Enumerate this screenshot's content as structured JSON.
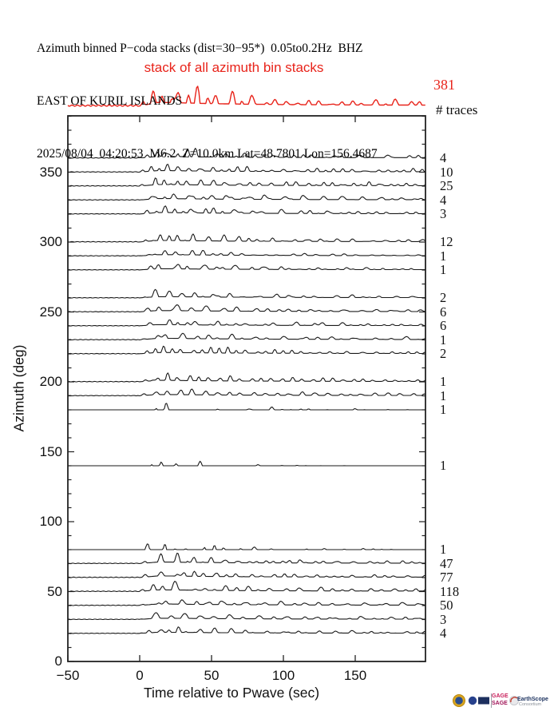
{
  "header": {
    "line1": "Azimuth binned P−coda stacks (dist=30−95*)  0.05to0.2Hz  BHZ",
    "line2": "EAST OF KURIL ISLANDS",
    "line3": "2025/08/04  04:20:53  M6.2  Z=10.0km Lat=48.7801 Lon=156.4687"
  },
  "stack_banner": {
    "label": "stack of all azimuth bin stacks",
    "count": "381",
    "color": "#e8231a"
  },
  "right_column": {
    "header": "# traces"
  },
  "chart_data": {
    "type": "line",
    "title": "Azimuth binned P−coda stacks (dist=30−95*) 0.05to0.2Hz BHZ",
    "subtitle": "stack of all azimuth bin stacks",
    "xlabel": "Time relative to Pwave (sec)",
    "ylabel": "Azimuth (deg)",
    "xlim": [
      -50,
      199
    ],
    "ylim": [
      0,
      390
    ],
    "xticks": [
      -50,
      0,
      50,
      100,
      150
    ],
    "xtick_labels": [
      "−50",
      "0",
      "50",
      "100",
      "150"
    ],
    "yticks": [
      0,
      50,
      100,
      150,
      200,
      250,
      300,
      350
    ],
    "ytick_labels": [
      "0",
      "50",
      "100",
      "150",
      "200",
      "250",
      "300",
      "350"
    ],
    "y_minor_step": 10,
    "grid": false,
    "trace_color": "#1a1a1a",
    "stack_color": "#e8231a",
    "total_stack": {
      "label": "stack of all azimuth bin stacks",
      "n_traces": 381,
      "amp": 26,
      "seed": 99
    },
    "bins": [
      {
        "azimuth": 360,
        "n_traces": 4,
        "amp": 11.7,
        "style": "d",
        "seed": 1
      },
      {
        "azimuth": 350,
        "n_traces": 10,
        "amp": 10.3,
        "style": "d",
        "seed": 2
      },
      {
        "azimuth": 340,
        "n_traces": 25,
        "amp": 11.0,
        "style": "d",
        "seed": 3
      },
      {
        "azimuth": 330,
        "n_traces": 4,
        "amp": 10.3,
        "style": "d",
        "seed": 4
      },
      {
        "azimuth": 320,
        "n_traces": 3,
        "amp": 10.3,
        "style": "d",
        "seed": 5
      },
      {
        "azimuth": 300,
        "n_traces": 12,
        "amp": 11.0,
        "style": "d",
        "seed": 6
      },
      {
        "azimuth": 290,
        "n_traces": 1,
        "amp": 9.5,
        "style": "d",
        "seed": 7
      },
      {
        "azimuth": 280,
        "n_traces": 1,
        "amp": 8.7,
        "style": "d",
        "seed": 8
      },
      {
        "azimuth": 260,
        "n_traces": 2,
        "amp": 9.0,
        "style": "d",
        "seed": 9
      },
      {
        "azimuth": 250,
        "n_traces": 6,
        "amp": 9.7,
        "style": "d",
        "seed": 10
      },
      {
        "azimuth": 240,
        "n_traces": 6,
        "amp": 9.0,
        "style": "d",
        "seed": 11
      },
      {
        "azimuth": 230,
        "n_traces": 1,
        "amp": 11.0,
        "style": "d",
        "seed": 12
      },
      {
        "azimuth": 220,
        "n_traces": 2,
        "amp": 9.7,
        "style": "d",
        "seed": 13
      },
      {
        "azimuth": 200,
        "n_traces": 1,
        "amp": 10.3,
        "style": "d",
        "seed": 14
      },
      {
        "azimuth": 190,
        "n_traces": 1,
        "amp": 9.0,
        "style": "d",
        "seed": 15
      },
      {
        "azimuth": 180,
        "n_traces": 1,
        "amp": 9.0,
        "style": "s",
        "seed": 16,
        "ld": 220
      },
      {
        "azimuth": 140,
        "n_traces": 1,
        "amp": 10.0,
        "style": "s",
        "seed": 17,
        "ld": 30
      },
      {
        "azimuth": 80,
        "n_traces": 1,
        "amp": 11.0,
        "style": "s",
        "seed": 18,
        "ld": 160
      },
      {
        "azimuth": 70,
        "n_traces": 47,
        "amp": 10.3,
        "style": "d",
        "seed": 19
      },
      {
        "azimuth": 60,
        "n_traces": 77,
        "amp": 11.0,
        "style": "d",
        "seed": 20
      },
      {
        "azimuth": 50,
        "n_traces": 118,
        "amp": 11.7,
        "style": "d",
        "seed": 21
      },
      {
        "azimuth": 40,
        "n_traces": 50,
        "amp": 10.3,
        "style": "d",
        "seed": 22
      },
      {
        "azimuth": 30,
        "n_traces": 3,
        "amp": 9.0,
        "style": "d",
        "seed": 23
      },
      {
        "azimuth": 20,
        "n_traces": 4,
        "amp": 8.7,
        "style": "d",
        "seed": 24
      }
    ]
  },
  "logos": {
    "gage": "GAGE",
    "sage": "SAGE",
    "earthscope": "EarthScope",
    "consortium": "Consortium"
  }
}
